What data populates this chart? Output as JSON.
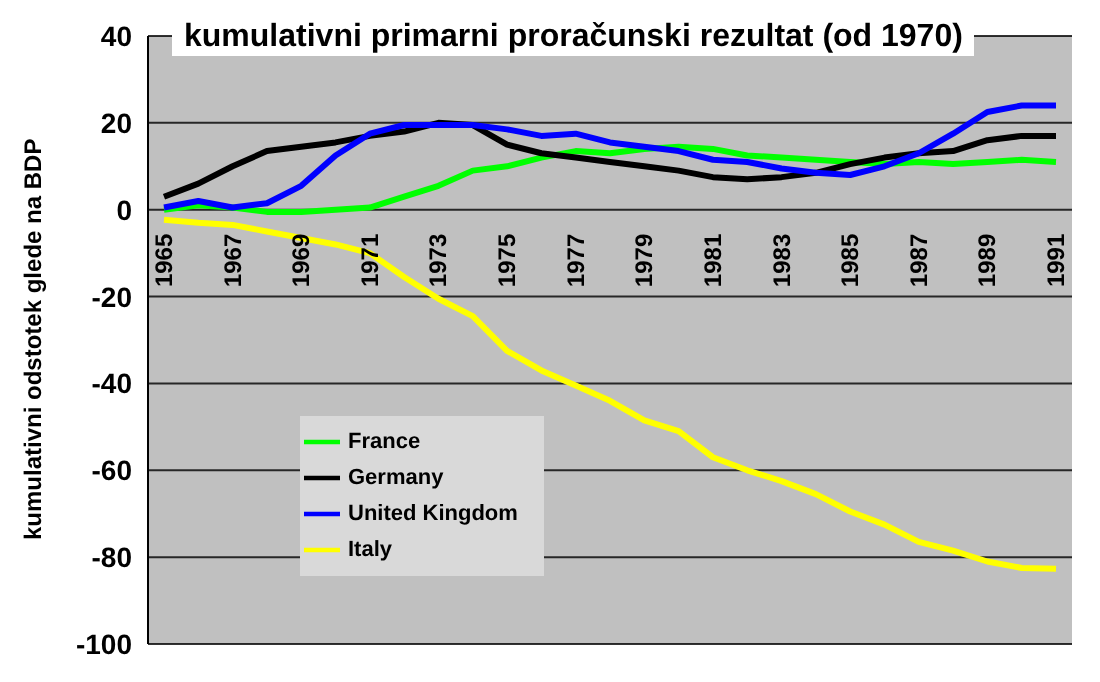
{
  "chart_data": {
    "type": "line",
    "title": "kumulativni primarni proračunski rezultat  (od 1970)",
    "ylabel": "kumulativni odstotek glede na BDP",
    "categories": [
      "1965",
      null,
      "1967",
      null,
      "1969",
      null,
      "1971",
      null,
      "1973",
      null,
      "1975",
      null,
      "1977",
      null,
      "1979",
      null,
      "1981",
      null,
      "1983",
      null,
      "1985",
      null,
      "1987",
      null,
      "1989",
      null,
      "1991"
    ],
    "series": [
      {
        "name": "France",
        "color": "#00ff00",
        "values": [
          0,
          1,
          0.5,
          -0.5,
          -0.5,
          0,
          0.5,
          3,
          5.5,
          9,
          10,
          12,
          13.5,
          13,
          14,
          14.5,
          14,
          12.5,
          12,
          11.5,
          11,
          10.5,
          11,
          10.5,
          11,
          11.5,
          11
        ]
      },
      {
        "name": "Germany",
        "color": "#000000",
        "values": [
          3,
          6,
          10,
          13.5,
          14.5,
          15.5,
          17,
          18,
          20,
          19.5,
          15,
          13,
          12,
          11,
          10,
          9,
          7.5,
          7,
          7.5,
          8.5,
          10.5,
          12,
          13,
          13.5,
          16,
          17,
          17
        ]
      },
      {
        "name": "United Kingdom",
        "color": "#0000ff",
        "values": [
          0.5,
          2,
          0.5,
          1.5,
          5.5,
          12.5,
          17.5,
          19.5,
          19.5,
          19.5,
          18.5,
          17,
          17.5,
          15.5,
          14.5,
          13.5,
          11.5,
          11,
          9.5,
          8.5,
          8,
          10,
          13,
          17.5,
          22.5,
          24,
          24
        ]
      },
      {
        "name": "Italy",
        "color": "#ffff00",
        "values": [
          -2.3,
          -3,
          -3.5,
          -5,
          -6.5,
          -8,
          -10,
          -15.5,
          -20.5,
          -24.5,
          -32.5,
          -37,
          -40.5,
          -44,
          -48.5,
          -51,
          -57,
          -60,
          -62.5,
          -65.5,
          -69.5,
          -72.5,
          -76.5,
          -78.5,
          -81,
          -82.5,
          -82.7
        ]
      }
    ],
    "ylim": [
      -100,
      40
    ],
    "yticks": [
      -100,
      -80,
      -60,
      -40,
      -20,
      0,
      20,
      40
    ],
    "grid": "y",
    "legend": "bottom left",
    "marker": "none",
    "line_style": "solid"
  }
}
